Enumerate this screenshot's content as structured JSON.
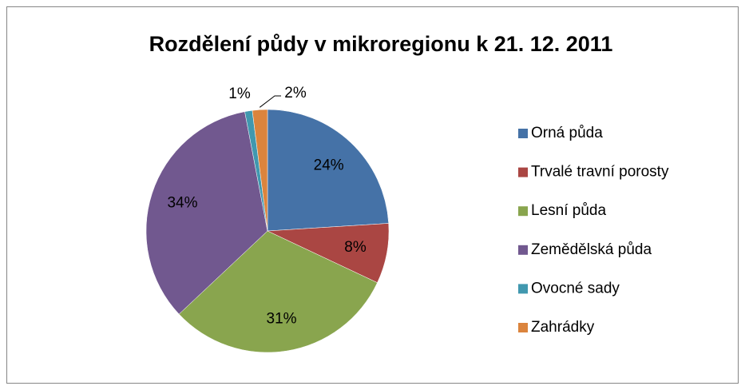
{
  "chart_data": {
    "type": "pie",
    "title": "Rozdělení půdy v mikroregionu k 21. 12. 2011",
    "categories": [
      "Orná půda",
      "Trvalé travní porosty",
      "Lesní půda",
      "Zemědělská půda",
      "Ovocné sady",
      "Zahrádky"
    ],
    "values": [
      24,
      8,
      31,
      34,
      1,
      2
    ],
    "value_labels": [
      "24%",
      "8%",
      "31%",
      "34%",
      "1%",
      "2%"
    ],
    "colors": [
      "#4572a7",
      "#aa4643",
      "#89a54e",
      "#71588f",
      "#4198af",
      "#db843d"
    ],
    "legend": "right"
  }
}
